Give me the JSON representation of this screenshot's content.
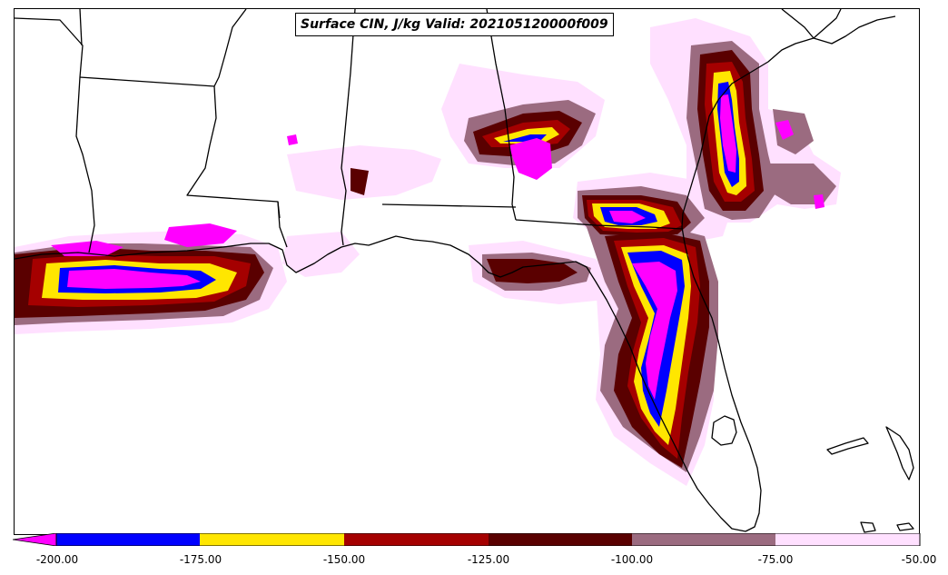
{
  "title": "Surface CIN, J/kg Valid: 202105120000f009",
  "colors": {
    "lt_minus200": "#ff00ff",
    "c_200_175": "#0000ff",
    "c_175_150": "#ffe600",
    "c_150_125": "#a50000",
    "c_125_100": "#5a0000",
    "c_100_75": "#9b6b80",
    "c_75_50": "#ffe0ff"
  },
  "colorbar": {
    "extend": "min",
    "levels": [
      "-200.00",
      "-175.00",
      "-150.00",
      "-125.00",
      "-100.00",
      "-75.00",
      "-50.00"
    ]
  },
  "map": {
    "region": "US Gulf Coast and Florida",
    "boundaries": [
      "state borders",
      "coastlines"
    ]
  }
}
